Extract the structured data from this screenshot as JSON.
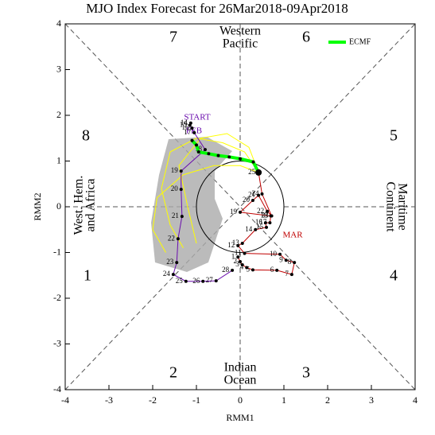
{
  "chart_data": {
    "type": "line",
    "title": "MJO Index Forecast for 26Mar2018-09Apr2018",
    "x_label": "RMM1",
    "y_label": "RMM2",
    "xlim": [
      -4,
      4
    ],
    "ylim": [
      -4,
      4
    ],
    "xticks": [
      -4,
      -3,
      -2,
      -1,
      0,
      1,
      2,
      3,
      4
    ],
    "yticks": [
      -4,
      -3,
      -2,
      -1,
      0,
      1,
      2,
      3,
      4
    ],
    "phases": [
      "1",
      "2",
      "3",
      "4",
      "5",
      "6",
      "7",
      "8"
    ],
    "regions": [
      [
        "Western",
        "Pacific"
      ],
      [
        "Indian",
        "Ocean"
      ],
      [
        "West. Hem.",
        "and Africa"
      ],
      [
        "Maritime",
        "Continent"
      ]
    ],
    "start_label": "START",
    "series": [
      {
        "name": "FEB",
        "color": "#6a0dad",
        "x": [
          -1.13,
          -1.15,
          -1.1,
          -1.05,
          -0.8,
          -1.35,
          -1.35,
          -1.33,
          -1.42,
          -1.45,
          -1.53,
          -1.24,
          -0.85,
          -0.55,
          -0.18
        ],
        "values": [
          1.83,
          1.78,
          1.72,
          1.62,
          1.25,
          0.78,
          0.38,
          -0.21,
          -0.7,
          -1.22,
          -1.48,
          -1.63,
          -1.63,
          -1.62,
          -1.39
        ],
        "labels": [
          "14",
          "15",
          "16",
          "17",
          "18",
          "19",
          "20",
          "21",
          "22",
          "23",
          "24",
          "25",
          "26",
          "27",
          "28"
        ]
      },
      {
        "name": "MAR",
        "color": "#c00000",
        "x": [
          -0.05,
          0.0,
          0.05,
          0.15,
          0.29,
          0.84,
          1.18,
          1.24,
          1.05,
          0.91,
          0.1,
          -0.05,
          0.05,
          0.35,
          0.6,
          0.58,
          0.68,
          0.7,
          0.0,
          0.29,
          0.42,
          0.62,
          0.72,
          0.5,
          0.42
        ],
        "values": [
          -1.1,
          -1.2,
          -1.27,
          -1.33,
          -1.38,
          -1.39,
          -1.48,
          -1.22,
          -1.17,
          -1.04,
          -1.02,
          -0.85,
          -0.8,
          -0.5,
          -0.45,
          -0.35,
          -0.35,
          -0.2,
          -0.12,
          0.14,
          0.25,
          -0.1,
          -0.2,
          0.28,
          0.75
        ],
        "labels": [
          "1",
          "2",
          "3",
          "4",
          "5",
          "6",
          "7",
          "8",
          "9",
          "10",
          "11",
          "12",
          "13",
          "14",
          "15",
          "16",
          "17",
          "18",
          "19",
          "20",
          "21",
          "22",
          "23",
          "24",
          "25"
        ]
      },
      {
        "name": "ECMF",
        "color": "#00ff00",
        "in_legend": true,
        "x": [
          0.42,
          0.3,
          0.0,
          -0.25,
          -0.5,
          -0.72,
          -0.95,
          -1.0,
          -1.1
        ],
        "values": [
          0.75,
          0.98,
          1.05,
          1.09,
          1.12,
          1.16,
          1.2,
          1.35,
          1.45
        ]
      },
      {
        "color": "#ffff00",
        "x": [
          0.42,
          0.1,
          -0.4,
          -1.0,
          -1.6,
          -1.8,
          -1.6,
          -1.3
        ],
        "values": [
          0.75,
          1.2,
          1.4,
          1.5,
          1.2,
          0.4,
          -0.4,
          -0.9
        ]
      },
      {
        "color": "#ffff00",
        "x": [
          0.42,
          0.0,
          -0.6,
          -1.3,
          -1.9,
          -2.0,
          -1.7
        ],
        "values": [
          0.75,
          0.9,
          0.9,
          0.7,
          0.2,
          -0.5,
          -1.0
        ]
      },
      {
        "color": "#ffff00",
        "x": [
          0.42,
          0.2,
          -0.3,
          -0.9,
          -1.4,
          -1.2,
          -1.0
        ],
        "values": [
          0.75,
          1.3,
          1.6,
          1.5,
          0.9,
          0.0,
          -0.8
        ]
      }
    ]
  }
}
